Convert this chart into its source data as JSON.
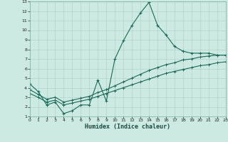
{
  "xlabel": "Humidex (Indice chaleur)",
  "bg_color": "#cce9e2",
  "line_color": "#1a6b5a",
  "grid_color": "#b0d4cc",
  "xlim": [
    0,
    23
  ],
  "ylim": [
    1,
    13
  ],
  "xticks": [
    0,
    1,
    2,
    3,
    4,
    5,
    6,
    7,
    8,
    9,
    10,
    11,
    12,
    13,
    14,
    15,
    16,
    17,
    18,
    19,
    20,
    21,
    22,
    23
  ],
  "yticks": [
    1,
    2,
    3,
    4,
    5,
    6,
    7,
    8,
    9,
    10,
    11,
    12,
    13
  ],
  "series1_x": [
    0,
    1,
    2,
    3,
    4,
    5,
    6,
    7,
    8,
    9,
    10,
    11,
    12,
    13,
    14,
    15,
    16,
    17,
    18,
    19,
    20,
    21,
    22,
    23
  ],
  "series1_y": [
    4.4,
    3.6,
    2.2,
    2.5,
    1.3,
    1.6,
    2.2,
    2.2,
    4.8,
    2.6,
    7.0,
    8.9,
    10.5,
    11.8,
    12.9,
    10.5,
    9.5,
    8.3,
    7.8,
    7.6,
    7.6,
    7.6,
    7.4,
    7.4
  ],
  "series2_x": [
    0,
    1,
    2,
    3,
    4,
    5,
    6,
    7,
    8,
    9,
    10,
    11,
    12,
    13,
    14,
    15,
    16,
    17,
    18,
    19,
    20,
    21,
    22,
    23
  ],
  "series2_y": [
    3.8,
    3.3,
    2.8,
    3.0,
    2.5,
    2.7,
    2.9,
    3.1,
    3.5,
    3.8,
    4.2,
    4.6,
    5.0,
    5.4,
    5.8,
    6.1,
    6.4,
    6.6,
    6.9,
    7.0,
    7.2,
    7.3,
    7.4,
    7.4
  ],
  "series3_x": [
    0,
    1,
    2,
    3,
    4,
    5,
    6,
    7,
    8,
    9,
    10,
    11,
    12,
    13,
    14,
    15,
    16,
    17,
    18,
    19,
    20,
    21,
    22,
    23
  ],
  "series3_y": [
    3.4,
    3.0,
    2.5,
    2.7,
    2.2,
    2.4,
    2.6,
    2.8,
    3.1,
    3.4,
    3.7,
    4.0,
    4.3,
    4.6,
    4.9,
    5.2,
    5.5,
    5.7,
    5.9,
    6.1,
    6.3,
    6.4,
    6.6,
    6.7
  ]
}
